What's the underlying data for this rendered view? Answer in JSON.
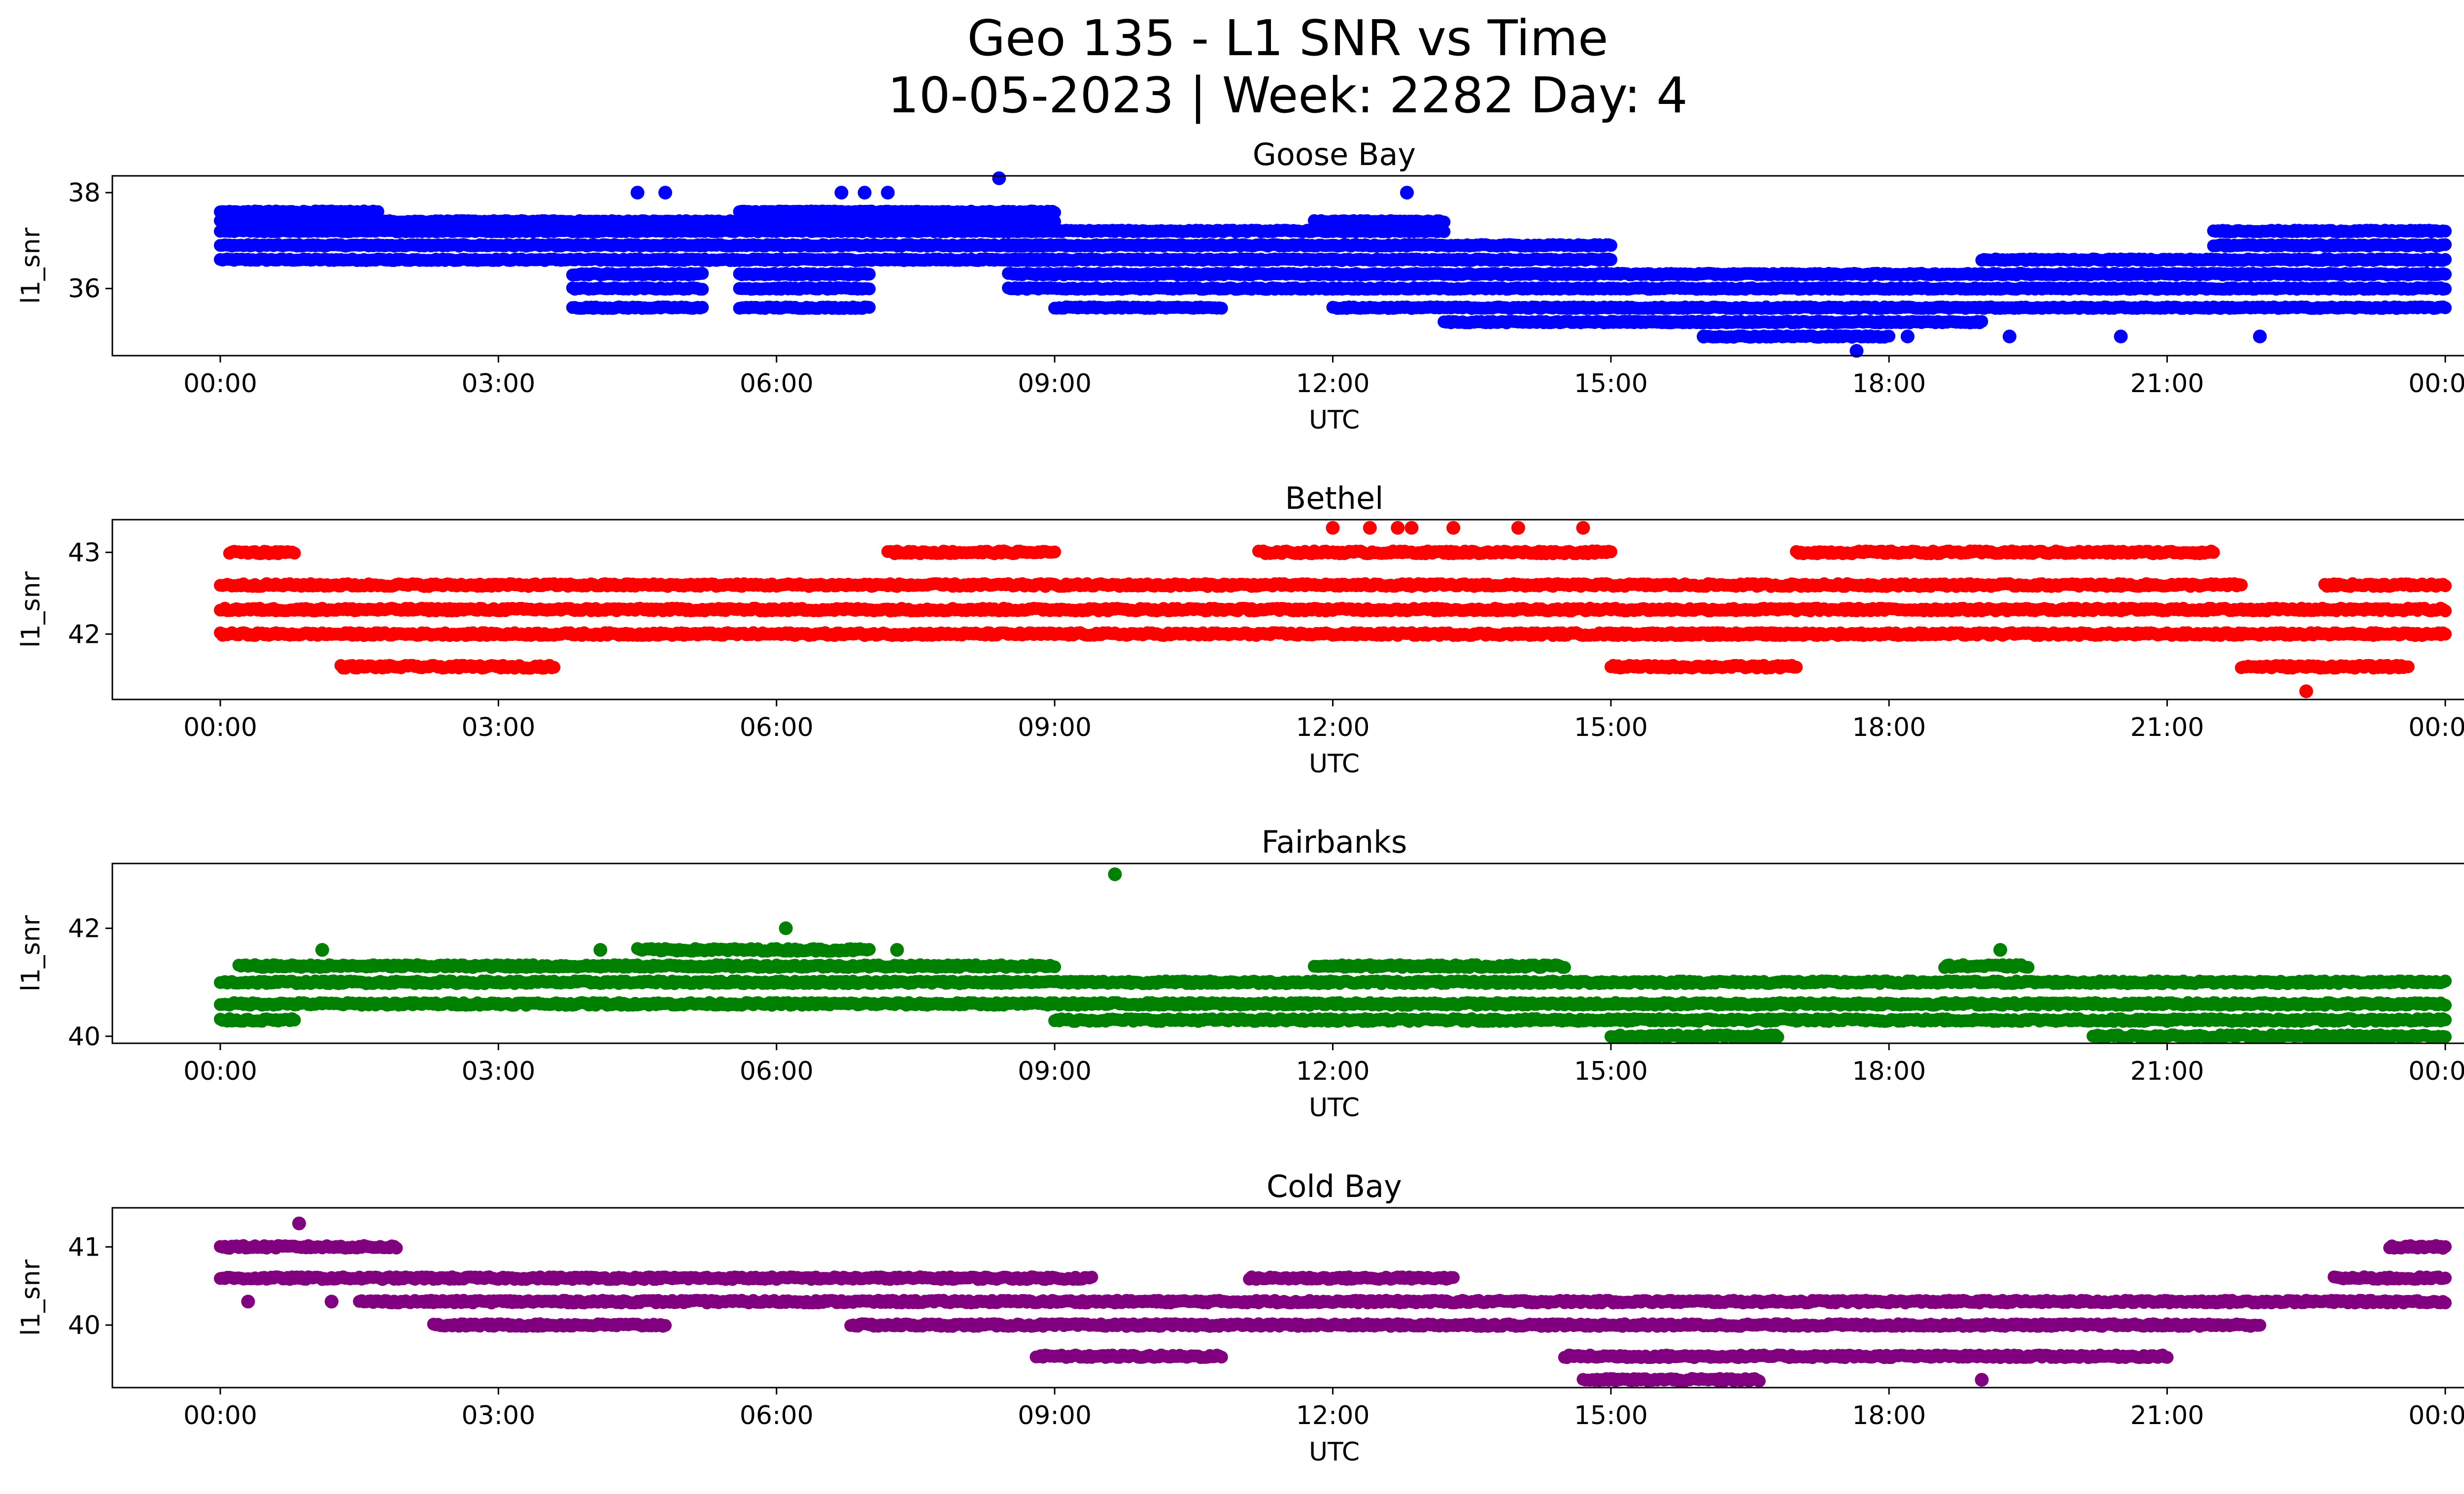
{
  "chart_data": {
    "type": "scatter",
    "title": "Geo 135 - L1 SNR vs Time",
    "subtitle": "10-05-2023 | Week: 2282 Day: 4",
    "xlabel": "UTC",
    "ylabel": "l1_snr",
    "x_unit": "hour of day (UTC), 0 to 24",
    "x_ticks": [
      "00:00",
      "03:00",
      "06:00",
      "09:00",
      "12:00",
      "15:00",
      "18:00",
      "21:00",
      "00:00"
    ],
    "grid": false,
    "legend": "none",
    "panels": [
      {
        "name": "Goose Bay",
        "color": "#0000ff",
        "ylim": [
          34.6,
          38.35
        ],
        "y_ticks": [
          36,
          38
        ],
        "level_step": 0.2,
        "outliers": [
          [
            4.5,
            38.0
          ],
          [
            4.8,
            38.0
          ],
          [
            6.7,
            38.0
          ],
          [
            6.95,
            38.0
          ],
          [
            7.2,
            38.0
          ],
          [
            8.4,
            38.3
          ],
          [
            12.8,
            38.0
          ],
          [
            16.0,
            35.0
          ],
          [
            17.65,
            34.7
          ],
          [
            18.2,
            35.0
          ],
          [
            19.3,
            35.0
          ],
          [
            20.5,
            35.0
          ],
          [
            22.0,
            35.0
          ]
        ],
        "bands": [
          {
            "x": [
              0.0,
              1.7
            ],
            "levels": [
              36.6,
              36.9,
              37.2,
              37.4,
              37.6
            ]
          },
          {
            "x": [
              1.7,
              6.0
            ],
            "levels": [
              36.6,
              36.9,
              37.2,
              37.4
            ]
          },
          {
            "x": [
              3.8,
              5.2
            ],
            "levels": [
              35.6,
              36.0,
              36.3
            ]
          },
          {
            "x": [
              5.6,
              7.0
            ],
            "levels": [
              35.6,
              36.0,
              36.3,
              37.6
            ]
          },
          {
            "x": [
              6.0,
              9.0
            ],
            "levels": [
              36.6,
              36.9,
              37.2,
              37.4,
              37.6
            ]
          },
          {
            "x": [
              8.5,
              12.0
            ],
            "levels": [
              36.0,
              36.3,
              36.6,
              36.9,
              37.2
            ]
          },
          {
            "x": [
              9.0,
              10.8
            ],
            "levels": [
              35.6
            ]
          },
          {
            "x": [
              11.8,
              13.2
            ],
            "levels": [
              37.2,
              37.4
            ]
          },
          {
            "x": [
              12.0,
              15.0
            ],
            "levels": [
              35.6,
              36.0,
              36.3,
              36.6,
              36.9
            ]
          },
          {
            "x": [
              13.2,
              16.0
            ],
            "levels": [
              35.3
            ]
          },
          {
            "x": [
              15.0,
              19.0
            ],
            "levels": [
              35.3,
              35.6,
              36.0,
              36.3
            ]
          },
          {
            "x": [
              16.0,
              18.0
            ],
            "levels": [
              35.0
            ]
          },
          {
            "x": [
              19.0,
              24.0
            ],
            "levels": [
              35.6,
              36.0,
              36.3,
              36.6
            ]
          },
          {
            "x": [
              21.5,
              24.0
            ],
            "levels": [
              36.9,
              37.2
            ]
          }
        ]
      },
      {
        "name": "Bethel",
        "color": "#ff0000",
        "ylim": [
          41.2,
          43.4
        ],
        "y_ticks": [
          42,
          43
        ],
        "level_step": 0.2,
        "outliers": [
          [
            12.0,
            43.3
          ],
          [
            12.4,
            43.3
          ],
          [
            12.7,
            43.3
          ],
          [
            12.85,
            43.3
          ],
          [
            13.3,
            43.3
          ],
          [
            14.0,
            43.3
          ],
          [
            14.7,
            43.3
          ],
          [
            22.5,
            41.3
          ]
        ],
        "bands": [
          {
            "x": [
              0.0,
              21.8
            ],
            "levels": [
              42.0,
              42.3,
              42.6
            ]
          },
          {
            "x": [
              21.8,
              24.0
            ],
            "levels": [
              42.0,
              42.3
            ]
          },
          {
            "x": [
              0.1,
              0.8
            ],
            "levels": [
              43.0
            ]
          },
          {
            "x": [
              1.3,
              3.6
            ],
            "levels": [
              41.6
            ]
          },
          {
            "x": [
              7.2,
              9.0
            ],
            "levels": [
              43.0
            ]
          },
          {
            "x": [
              11.2,
              15.0
            ],
            "levels": [
              43.0
            ]
          },
          {
            "x": [
              17.0,
              21.5
            ],
            "levels": [
              43.0
            ]
          },
          {
            "x": [
              21.8,
              23.6
            ],
            "levels": [
              41.6
            ]
          },
          {
            "x": [
              22.7,
              24.0
            ],
            "levels": [
              42.6
            ]
          },
          {
            "x": [
              15.0,
              17.0
            ],
            "levels": [
              41.6,
              42.0
            ]
          }
        ]
      },
      {
        "name": "Fairbanks",
        "color": "#008000",
        "ylim": [
          39.87,
          43.2
        ],
        "y_ticks": [
          40,
          42
        ],
        "level_step": 0.3,
        "outliers": [
          [
            6.1,
            42.0
          ],
          [
            9.65,
            43.0
          ],
          [
            19.2,
            41.6
          ],
          [
            1.1,
            41.6
          ],
          [
            4.1,
            41.6
          ],
          [
            7.3,
            41.6
          ]
        ],
        "bands": [
          {
            "x": [
              0.0,
              9.0
            ],
            "levels": [
              40.6,
              41.0
            ]
          },
          {
            "x": [
              0.0,
              0.8
            ],
            "levels": [
              40.3
            ]
          },
          {
            "x": [
              0.2,
              3.3
            ],
            "levels": [
              41.3
            ]
          },
          {
            "x": [
              3.0,
              9.0
            ],
            "levels": [
              41.3
            ]
          },
          {
            "x": [
              4.5,
              7.0
            ],
            "levels": [
              41.6
            ]
          },
          {
            "x": [
              9.0,
              24.0
            ],
            "levels": [
              40.3,
              40.6,
              41.0
            ]
          },
          {
            "x": [
              11.8,
              14.5
            ],
            "levels": [
              41.3
            ]
          },
          {
            "x": [
              15.0,
              16.8
            ],
            "levels": [
              40.0
            ]
          },
          {
            "x": [
              18.6,
              19.5
            ],
            "levels": [
              41.3
            ]
          },
          {
            "x": [
              20.2,
              24.0
            ],
            "levels": [
              40.0
            ]
          }
        ]
      },
      {
        "name": "Cold Bay",
        "color": "#800080",
        "ylim": [
          39.2,
          41.5
        ],
        "y_ticks": [
          40,
          41
        ],
        "level_step": 0.2,
        "outliers": [
          [
            0.85,
            41.3
          ],
          [
            19.0,
            39.3
          ],
          [
            0.3,
            40.3
          ],
          [
            1.2,
            40.3
          ]
        ],
        "bands": [
          {
            "x": [
              0.0,
              1.9
            ],
            "levels": [
              41.0
            ]
          },
          {
            "x": [
              0.0,
              9.4
            ],
            "levels": [
              40.6
            ]
          },
          {
            "x": [
              1.5,
              24.0
            ],
            "levels": [
              40.3
            ]
          },
          {
            "x": [
              2.3,
              4.8
            ],
            "levels": [
              40.0
            ]
          },
          {
            "x": [
              6.8,
              22.0
            ],
            "levels": [
              40.0
            ]
          },
          {
            "x": [
              8.8,
              10.8
            ],
            "levels": [
              39.6
            ]
          },
          {
            "x": [
              11.1,
              13.3
            ],
            "levels": [
              40.6
            ]
          },
          {
            "x": [
              14.5,
              21.0
            ],
            "levels": [
              39.6
            ]
          },
          {
            "x": [
              14.7,
              16.6
            ],
            "levels": [
              39.3
            ]
          },
          {
            "x": [
              22.8,
              24.0
            ],
            "levels": [
              40.6
            ]
          },
          {
            "x": [
              23.4,
              24.0
            ],
            "levels": [
              41.0
            ]
          }
        ]
      }
    ]
  }
}
